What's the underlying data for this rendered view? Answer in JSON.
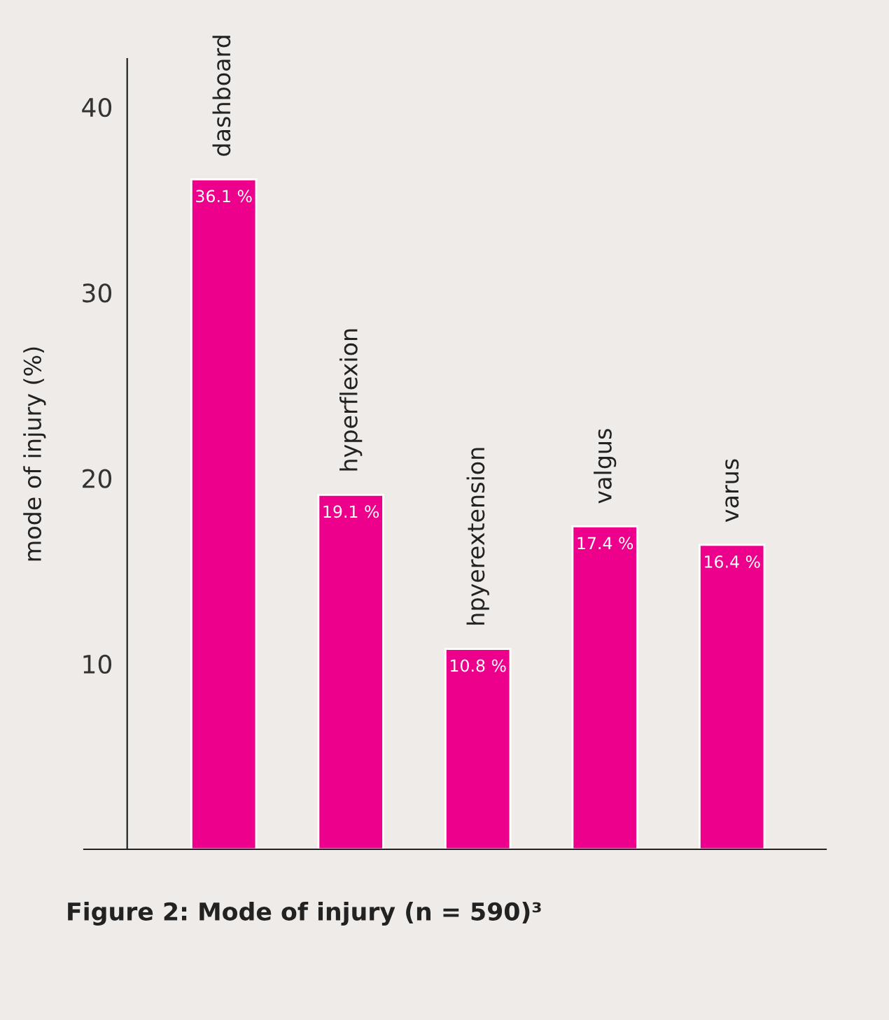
{
  "chart_data": {
    "type": "bar",
    "title": "Figure 2: Mode of injury (n = 590)³",
    "ylabel": "mode of injury (%)",
    "categories": [
      "dashboard",
      "hyperflexion",
      "hpyerextension",
      "valgus",
      "varus"
    ],
    "values": [
      36.1,
      19.1,
      10.8,
      17.4,
      16.4
    ],
    "value_labels": [
      "36.1 %",
      "19.1 %",
      "10.8 %",
      "17.4 %",
      "16.4 %"
    ],
    "color": "#ec008c",
    "ylim": [
      0,
      42.6
    ],
    "yticks": [
      10,
      20,
      30,
      40
    ],
    "grid": false,
    "legend": false
  }
}
